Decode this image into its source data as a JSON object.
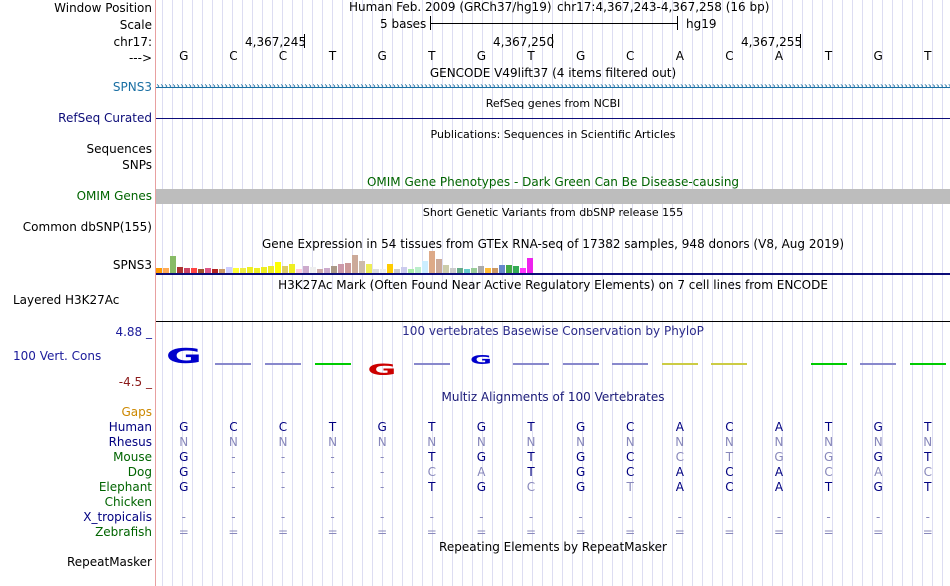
{
  "header": {
    "assembly": "Human Feb. 2009 (GRCh37/hg19)",
    "position": "chr17:4,367,243-4,367,258 (16 bp)",
    "scale_text": "5 bases",
    "scale_db": "hg19",
    "coords": [
      "4,367,245",
      "4,367,250",
      "4,367,255"
    ],
    "arrow": "--->"
  },
  "labels": {
    "window_position": "Window Position",
    "scale": "Scale",
    "chrom": "chr17:",
    "spns3": "SPNS3",
    "refseq": "RefSeq Curated",
    "sequences": "Sequences",
    "snps": "SNPs",
    "omim": "OMIM Genes",
    "common_dbsnp": "Common dbSNP(155)",
    "gtex": "SPNS3",
    "h3k27ac": "Layered H3K27Ac",
    "cons_max": "4.88 _",
    "cons_name": "100 Vert. Cons",
    "cons_min": "-4.5 _",
    "gaps": "Gaps",
    "repeatmasker": "RepeatMasker"
  },
  "track_titles": {
    "gencode": "GENCODE V49lift37 (4 items filtered out)",
    "refseq": "RefSeq genes from NCBI",
    "publications": "Publications: Sequences in Scientific Articles",
    "omim": "OMIM Gene Phenotypes - Dark Green Can Be Disease-causing",
    "dbsnp": "Short Genetic Variants from dbSNP release 155",
    "gtex": "Gene Expression in 54 tissues from GTEx RNA-seq of 17382 samples, 948 donors (V8, Aug 2019)",
    "h3k27ac": "H3K27Ac Mark (Often Found Near Active Regulatory Elements) on 7 cell lines from ENCODE",
    "phylop": "100 vertebrates Basewise Conservation by PhyloP",
    "multiz": "Multiz Alignments of 100 Vertebrates",
    "repeatmasker": "Repeating Elements by RepeatMasker"
  },
  "ruler_bases": [
    "G",
    "C",
    "C",
    "T",
    "G",
    "T",
    "G",
    "T",
    "G",
    "C",
    "A",
    "C",
    "A",
    "T",
    "G",
    "T"
  ],
  "species": [
    {
      "name": "Human",
      "color": "#000080",
      "bases": [
        "G",
        "C",
        "C",
        "T",
        "G",
        "T",
        "G",
        "T",
        "G",
        "C",
        "A",
        "C",
        "A",
        "T",
        "G",
        "T"
      ]
    },
    {
      "name": "Rhesus",
      "color": "#000080",
      "bases": [
        "N",
        "N",
        "N",
        "N",
        "N",
        "N",
        "N",
        "N",
        "N",
        "N",
        "N",
        "N",
        "N",
        "N",
        "N",
        "N"
      ]
    },
    {
      "name": "Mouse",
      "color": "#006400",
      "bases": [
        "G",
        "-",
        "-",
        "-",
        "-",
        "T",
        "G",
        "T",
        "G",
        "C",
        "C",
        "T",
        "G",
        "G",
        "G",
        "T"
      ]
    },
    {
      "name": "Dog",
      "color": "#006400",
      "bases": [
        "G",
        "-",
        "-",
        "-",
        "-",
        "C",
        "A",
        "T",
        "G",
        "C",
        "A",
        "C",
        "A",
        "C",
        "A",
        "C"
      ]
    },
    {
      "name": "Elephant",
      "color": "#006400",
      "bases": [
        "G",
        "-",
        "-",
        "-",
        "-",
        "T",
        "G",
        "C",
        "G",
        "T",
        "A",
        "C",
        "A",
        "T",
        "G",
        "T"
      ]
    },
    {
      "name": "Chicken",
      "color": "#006400",
      "bases": [
        "",
        "",
        "",
        "",
        "",
        "",
        "",
        "",
        "",
        "",
        "",
        "",
        "",
        "",
        "",
        ""
      ]
    },
    {
      "name": "X_tropicalis",
      "color": "#000080",
      "bases": [
        "-",
        "-",
        "-",
        "-",
        "-",
        "-",
        "-",
        "-",
        "-",
        "-",
        "-",
        "-",
        "-",
        "-",
        "-",
        "-"
      ]
    },
    {
      "name": "Zebrafish",
      "color": "#006400",
      "bases": [
        "=",
        "=",
        "=",
        "=",
        "=",
        "=",
        "=",
        "=",
        "=",
        "=",
        "=",
        "=",
        "=",
        "=",
        "=",
        "="
      ]
    }
  ],
  "colors": {
    "gencode": "#1a6fa3",
    "refseq": "#0c0c78",
    "omim": "#006400",
    "phylop": "#2a2a8a",
    "multiz": "#1a1a78",
    "cons_max": "#1a1a9a",
    "cons_min": "#8b1a1a",
    "gaps": "#cc8800",
    "conserved": "#000080",
    "unconserved": "#8888bb"
  },
  "gtex": {
    "values": [
      5,
      5,
      17,
      6,
      5,
      5,
      4,
      5,
      4,
      4,
      6,
      5,
      5,
      6,
      5,
      6,
      7,
      11,
      7,
      9,
      4,
      7,
      6,
      4,
      5,
      7,
      9,
      10,
      18,
      12,
      9,
      4,
      4,
      9,
      4,
      6,
      4,
      6,
      12,
      22,
      14,
      8,
      5,
      5,
      4,
      5,
      7,
      5,
      5,
      8,
      8,
      7,
      5,
      15
    ],
    "colors": [
      "#ff9900",
      "#ffaa55",
      "#88bb66",
      "#aa3333",
      "#cc4466",
      "#ff4444",
      "#a0522d",
      "#dd5588",
      "#b22222",
      "#cc9966",
      "#ccccff",
      "#ffff33",
      "#eeee44",
      "#eeee22",
      "#eeee22",
      "#eeee22",
      "#eeee22",
      "#ffff00",
      "#ddcc66",
      "#eeee22",
      "#ffccdd",
      "#ccaacc",
      "#eeeeee",
      "#ccaaaa",
      "#ccaacc",
      "#aa9988",
      "#cc99aa",
      "#cc9999",
      "#ccaa99",
      "#ccbbaa",
      "#eeee55",
      "#dddddd",
      "#eeeeee",
      "#ffcc00",
      "#cccccc",
      "#ccccee",
      "#aaeeaa",
      "#bbeecc",
      "#cceeff",
      "#ddaa88",
      "#ccaa99",
      "#ccccaa",
      "#cccccc",
      "#66aa88",
      "#66cccc",
      "#99cc99",
      "#aaaaaa",
      "#ffbb33",
      "#cc9966",
      "#6688cc",
      "#44aa44",
      "#33aa55",
      "#ff33ff",
      "#ee22ee"
    ]
  }
}
